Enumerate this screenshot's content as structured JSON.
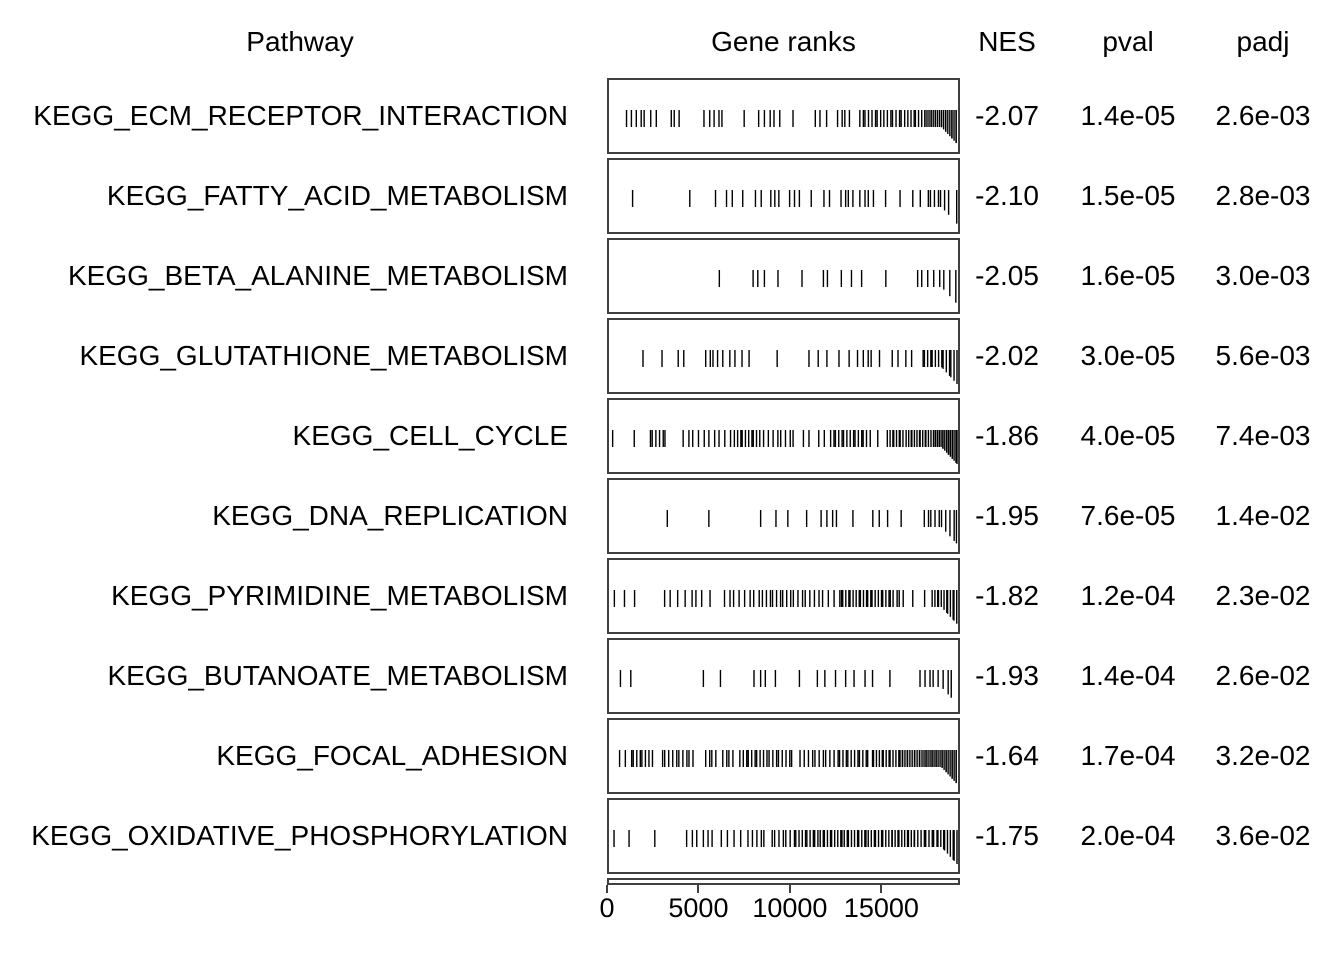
{
  "colors": {
    "text": "#000000",
    "box_border": "#404040",
    "tick": "#000000",
    "background": "#ffffff"
  },
  "header": {
    "pathway": "Pathway",
    "gene_ranks": "Gene ranks",
    "nes": "NES",
    "pval": "pval",
    "padj": "padj"
  },
  "axis": {
    "ticks": [
      "0",
      "5000",
      "10000",
      "15000"
    ],
    "tick_values": [
      0,
      5000,
      10000,
      15000
    ],
    "max_rank": 19300
  },
  "chart_data": {
    "type": "table",
    "title": "",
    "columns": [
      "Pathway",
      "Gene ranks",
      "NES",
      "pval",
      "padj"
    ],
    "x_axis": {
      "label": "Gene ranks",
      "tick_labels": [
        0,
        5000,
        10000,
        15000
      ],
      "range": [
        0,
        19300
      ]
    },
    "pathways": [
      {
        "pathway": "KEGG_ECM_RECEPTOR_INTERACTION",
        "nes": "-2.07",
        "pval": "1.4e-05",
        "padj": "2.6e-03",
        "tick_clusters": [
          [
            0.05,
            0.1,
            5
          ],
          [
            0.115,
            0.135,
            2
          ],
          [
            0.175,
            0.2,
            3
          ],
          [
            0.27,
            0.285,
            2
          ],
          [
            0.3,
            0.325,
            3
          ],
          [
            0.385,
            0.39,
            1
          ],
          [
            0.43,
            0.46,
            3
          ],
          [
            0.475,
            0.49,
            2
          ],
          [
            0.52,
            0.53,
            1
          ],
          [
            0.59,
            0.625,
            3
          ],
          [
            0.655,
            0.69,
            4
          ],
          [
            0.72,
            0.78,
            8
          ],
          [
            0.79,
            0.85,
            8
          ],
          [
            0.86,
            0.905,
            7
          ],
          [
            0.91,
            1.0,
            22
          ]
        ]
      },
      {
        "pathway": "KEGG_FATTY_ACID_METABOLISM",
        "nes": "-2.10",
        "pval": "1.5e-05",
        "padj": "2.8e-03",
        "tick_clusters": [
          [
            0.065,
            0.07,
            1
          ],
          [
            0.225,
            0.23,
            1
          ],
          [
            0.3,
            0.305,
            1
          ],
          [
            0.335,
            0.35,
            2
          ],
          [
            0.38,
            0.385,
            1
          ],
          [
            0.42,
            0.435,
            2
          ],
          [
            0.465,
            0.485,
            3
          ],
          [
            0.52,
            0.545,
            3
          ],
          [
            0.575,
            0.58,
            1
          ],
          [
            0.615,
            0.635,
            2
          ],
          [
            0.665,
            0.7,
            4
          ],
          [
            0.72,
            0.76,
            4
          ],
          [
            0.79,
            0.8,
            1
          ],
          [
            0.835,
            0.84,
            1
          ],
          [
            0.875,
            0.895,
            2
          ],
          [
            0.915,
            0.975,
            7
          ],
          [
            0.995,
            1.0,
            1
          ]
        ]
      },
      {
        "pathway": "KEGG_BETA_ALANINE_METABOLISM",
        "nes": "-2.05",
        "pval": "1.6e-05",
        "padj": "3.0e-03",
        "tick_clusters": [
          [
            0.315,
            0.32,
            1
          ],
          [
            0.41,
            0.445,
            3
          ],
          [
            0.48,
            0.485,
            1
          ],
          [
            0.55,
            0.555,
            1
          ],
          [
            0.615,
            0.625,
            2
          ],
          [
            0.665,
            0.67,
            1
          ],
          [
            0.695,
            0.7,
            1
          ],
          [
            0.725,
            0.73,
            1
          ],
          [
            0.79,
            0.795,
            1
          ],
          [
            0.885,
            0.995,
            8
          ]
        ]
      },
      {
        "pathway": "KEGG_GLUTATHIONE_METABOLISM",
        "nes": "-2.02",
        "pval": "3.0e-05",
        "padj": "5.6e-03",
        "tick_clusters": [
          [
            0.095,
            0.1,
            1
          ],
          [
            0.145,
            0.15,
            1
          ],
          [
            0.195,
            0.215,
            2
          ],
          [
            0.275,
            0.31,
            4
          ],
          [
            0.325,
            0.4,
            5
          ],
          [
            0.48,
            0.485,
            1
          ],
          [
            0.575,
            0.6,
            2
          ],
          [
            0.625,
            0.63,
            1
          ],
          [
            0.655,
            0.66,
            1
          ],
          [
            0.685,
            0.69,
            1
          ],
          [
            0.71,
            0.715,
            1
          ],
          [
            0.73,
            0.755,
            3
          ],
          [
            0.775,
            0.78,
            1
          ],
          [
            0.815,
            0.83,
            2
          ],
          [
            0.855,
            0.87,
            2
          ],
          [
            0.9,
            1.0,
            14
          ]
        ]
      },
      {
        "pathway": "KEGG_CELL_CYCLE",
        "nes": "-1.86",
        "pval": "4.0e-05",
        "padj": "7.4e-03",
        "tick_clusters": [
          [
            0.008,
            0.012,
            1
          ],
          [
            0.065,
            0.07,
            1
          ],
          [
            0.115,
            0.16,
            6
          ],
          [
            0.21,
            0.27,
            5
          ],
          [
            0.285,
            0.3,
            2
          ],
          [
            0.315,
            0.345,
            3
          ],
          [
            0.36,
            0.43,
            10
          ],
          [
            0.445,
            0.53,
            8
          ],
          [
            0.555,
            0.575,
            2
          ],
          [
            0.6,
            0.62,
            2
          ],
          [
            0.635,
            0.74,
            14
          ],
          [
            0.75,
            0.77,
            2
          ],
          [
            0.8,
            0.845,
            8
          ],
          [
            0.855,
            0.93,
            14
          ],
          [
            0.935,
            1.0,
            18
          ]
        ]
      },
      {
        "pathway": "KEGG_DNA_REPLICATION",
        "nes": "-1.95",
        "pval": "7.6e-05",
        "padj": "1.4e-02",
        "tick_clusters": [
          [
            0.165,
            0.17,
            1
          ],
          [
            0.28,
            0.285,
            1
          ],
          [
            0.43,
            0.435,
            1
          ],
          [
            0.475,
            0.48,
            1
          ],
          [
            0.51,
            0.515,
            1
          ],
          [
            0.565,
            0.57,
            1
          ],
          [
            0.61,
            0.655,
            4
          ],
          [
            0.7,
            0.705,
            1
          ],
          [
            0.755,
            0.8,
            3
          ],
          [
            0.835,
            0.84,
            1
          ],
          [
            0.905,
            1.0,
            10
          ]
        ]
      },
      {
        "pathway": "KEGG_PYRIMIDINE_METABOLISM",
        "nes": "-1.82",
        "pval": "1.2e-04",
        "padj": "2.3e-02",
        "tick_clusters": [
          [
            0.015,
            0.07,
            3
          ],
          [
            0.155,
            0.215,
            4
          ],
          [
            0.235,
            0.265,
            3
          ],
          [
            0.285,
            0.29,
            1
          ],
          [
            0.33,
            0.43,
            8
          ],
          [
            0.44,
            0.52,
            9
          ],
          [
            0.53,
            0.6,
            7
          ],
          [
            0.615,
            0.66,
            4
          ],
          [
            0.665,
            0.745,
            12
          ],
          [
            0.75,
            0.81,
            9
          ],
          [
            0.815,
            0.845,
            4
          ],
          [
            0.87,
            0.875,
            1
          ],
          [
            0.905,
            0.91,
            1
          ],
          [
            0.93,
            1.0,
            12
          ]
        ]
      },
      {
        "pathway": "KEGG_BUTANOATE_METABOLISM",
        "nes": "-1.93",
        "pval": "1.4e-04",
        "padj": "2.6e-02",
        "tick_clusters": [
          [
            0.03,
            0.035,
            1
          ],
          [
            0.055,
            0.06,
            1
          ],
          [
            0.265,
            0.27,
            1
          ],
          [
            0.315,
            0.32,
            1
          ],
          [
            0.415,
            0.45,
            3
          ],
          [
            0.475,
            0.48,
            1
          ],
          [
            0.545,
            0.55,
            1
          ],
          [
            0.6,
            0.62,
            2
          ],
          [
            0.645,
            0.65,
            1
          ],
          [
            0.675,
            0.68,
            1
          ],
          [
            0.7,
            0.705,
            1
          ],
          [
            0.735,
            0.755,
            2
          ],
          [
            0.805,
            0.81,
            1
          ],
          [
            0.895,
            0.985,
            8
          ]
        ]
      },
      {
        "pathway": "KEGG_FOCAL_ADHESION",
        "nes": "-1.64",
        "pval": "1.7e-04",
        "padj": "3.2e-02",
        "tick_clusters": [
          [
            0.03,
            0.045,
            2
          ],
          [
            0.06,
            0.12,
            8
          ],
          [
            0.15,
            0.24,
            10
          ],
          [
            0.275,
            0.305,
            4
          ],
          [
            0.325,
            0.355,
            4
          ],
          [
            0.375,
            0.45,
            10
          ],
          [
            0.46,
            0.525,
            8
          ],
          [
            0.55,
            0.645,
            10
          ],
          [
            0.655,
            0.745,
            12
          ],
          [
            0.755,
            0.83,
            12
          ],
          [
            0.835,
            0.9,
            14
          ],
          [
            0.905,
            1.0,
            24
          ]
        ]
      },
      {
        "pathway": "KEGG_OXIDATIVE_PHOSPHORYLATION",
        "nes": "-1.75",
        "pval": "2.0e-04",
        "padj": "3.6e-02",
        "tick_clusters": [
          [
            0.012,
            0.016,
            1
          ],
          [
            0.05,
            0.055,
            1
          ],
          [
            0.125,
            0.13,
            1
          ],
          [
            0.22,
            0.235,
            2
          ],
          [
            0.25,
            0.285,
            3
          ],
          [
            0.295,
            0.32,
            2
          ],
          [
            0.34,
            0.375,
            3
          ],
          [
            0.4,
            0.445,
            5
          ],
          [
            0.465,
            0.52,
            6
          ],
          [
            0.53,
            0.6,
            10
          ],
          [
            0.605,
            0.67,
            10
          ],
          [
            0.675,
            0.74,
            10
          ],
          [
            0.745,
            0.81,
            10
          ],
          [
            0.815,
            0.875,
            10
          ],
          [
            0.88,
            0.935,
            8
          ],
          [
            0.94,
            1.0,
            10
          ]
        ]
      }
    ]
  },
  "layout_numbers": {
    "row_count": "10"
  }
}
